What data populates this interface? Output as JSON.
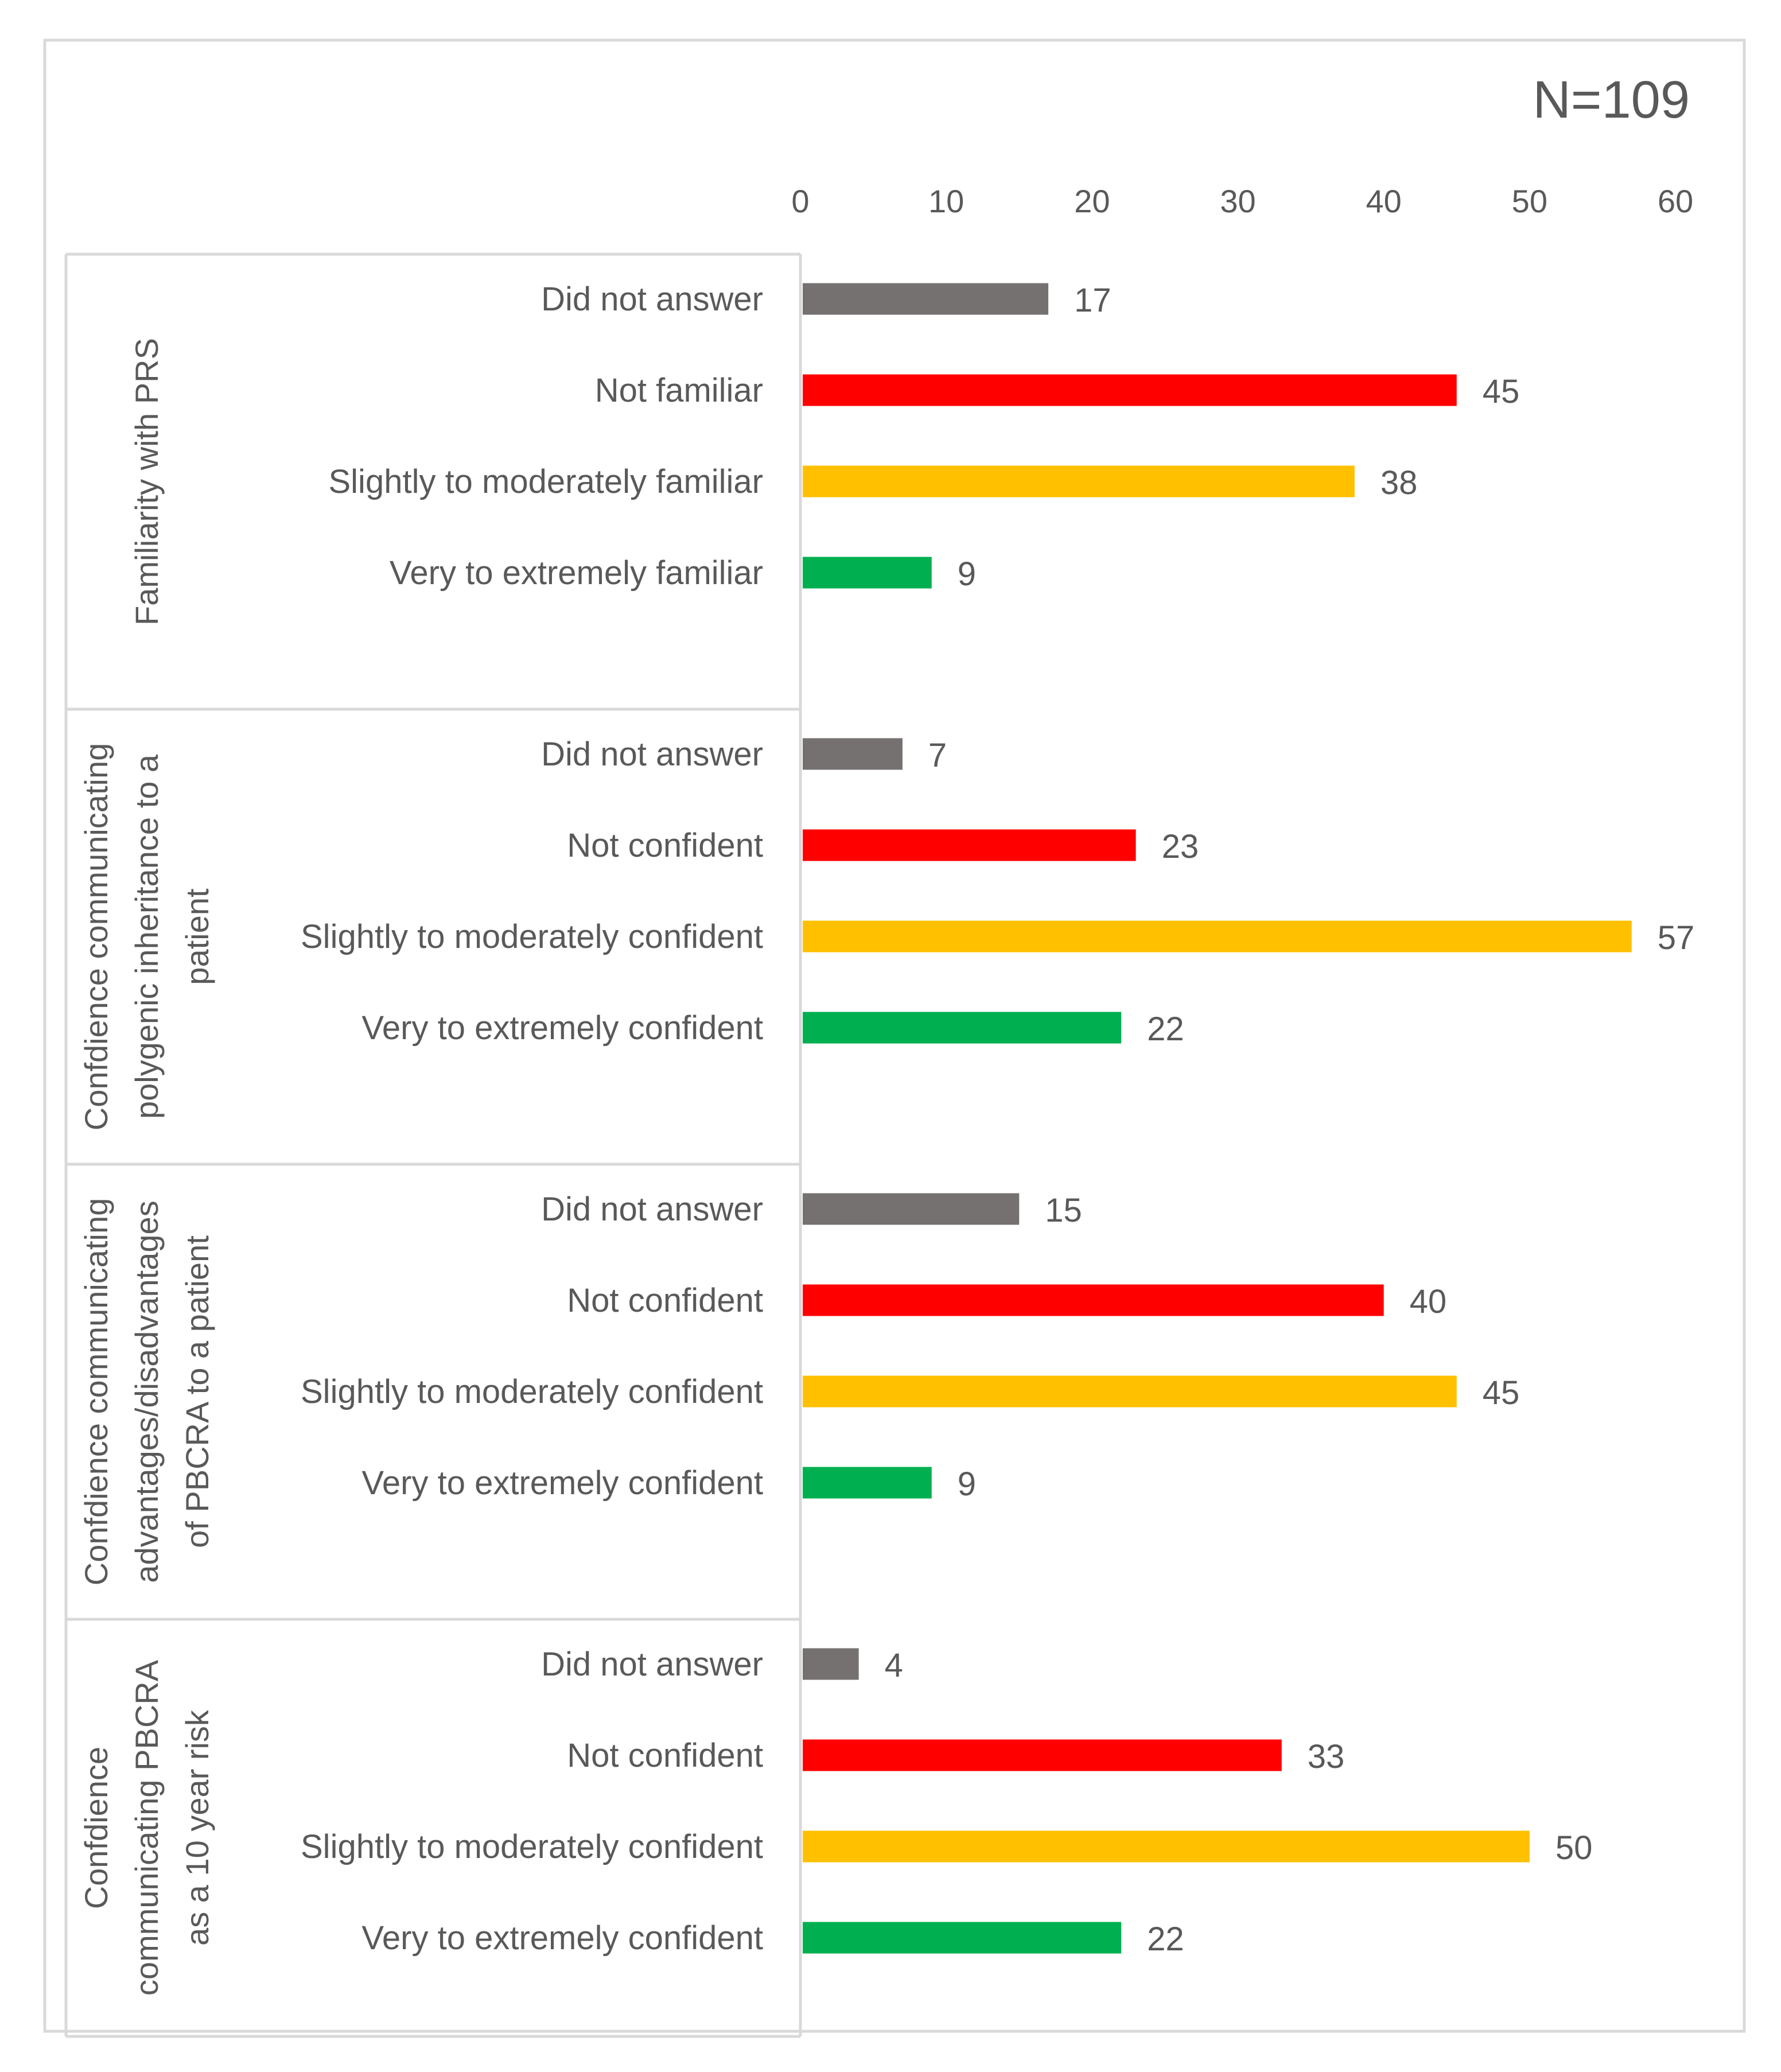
{
  "chart_data": {
    "type": "bar",
    "orientation": "horizontal",
    "title": "N=109",
    "xlim": [
      0,
      60
    ],
    "x_ticks": [
      0,
      10,
      20,
      30,
      40,
      50,
      60
    ],
    "x_tick_labels": [
      "0",
      "10",
      "20",
      "30",
      "40",
      "50",
      "60"
    ],
    "colors": {
      "Did not answer": "#767171",
      "not": "#ff0000",
      "slightly": "#ffc000",
      "very": "#00b050"
    },
    "groups": [
      {
        "label": "Familiarity with PRS",
        "label_lines": [
          "Familiarity with PRS"
        ],
        "bars": [
          {
            "category": "Did not answer",
            "value": 17,
            "color": "#767171"
          },
          {
            "category": "Not familiar",
            "value": 45,
            "color": "#ff0000"
          },
          {
            "category": "Slightly to moderately familiar",
            "value": 38,
            "color": "#ffc000"
          },
          {
            "category": "Very to extremely familiar",
            "value": 9,
            "color": "#00b050"
          }
        ]
      },
      {
        "label": "Confdience communicating polygenic inheritance to a patient",
        "label_lines": [
          "Confdience communicating",
          "polygenic inheritance to a",
          "patient"
        ],
        "bars": [
          {
            "category": "Did not answer",
            "value": 7,
            "color": "#767171"
          },
          {
            "category": "Not confident",
            "value": 23,
            "color": "#ff0000"
          },
          {
            "category": "Slightly to moderately confident",
            "value": 57,
            "color": "#ffc000"
          },
          {
            "category": "Very to extremely confident",
            "value": 22,
            "color": "#00b050"
          }
        ]
      },
      {
        "label": "Confdience communicating advantages/disadvantages of PBCRA to a patient",
        "label_lines": [
          "Confdience communicating",
          "advantages/disadvantages",
          "of PBCRA to a patient"
        ],
        "bars": [
          {
            "category": "Did not answer",
            "value": 15,
            "color": "#767171"
          },
          {
            "category": "Not confident",
            "value": 40,
            "color": "#ff0000"
          },
          {
            "category": "Slightly to moderately confident",
            "value": 45,
            "color": "#ffc000"
          },
          {
            "category": "Very to extremely confident",
            "value": 9,
            "color": "#00b050"
          }
        ]
      },
      {
        "label": "Confdience communicating PBCRA as a 10 year risk",
        "label_lines": [
          "Confdience",
          "communicating PBCRA",
          "as a 10 year risk"
        ],
        "bars": [
          {
            "category": "Did not answer",
            "value": 4,
            "color": "#767171"
          },
          {
            "category": "Not confident",
            "value": 33,
            "color": "#ff0000"
          },
          {
            "category": "Slightly to moderately confident",
            "value": 50,
            "color": "#ffc000"
          },
          {
            "category": "Very to extremely confident",
            "value": 22,
            "color": "#00b050"
          }
        ]
      }
    ]
  }
}
